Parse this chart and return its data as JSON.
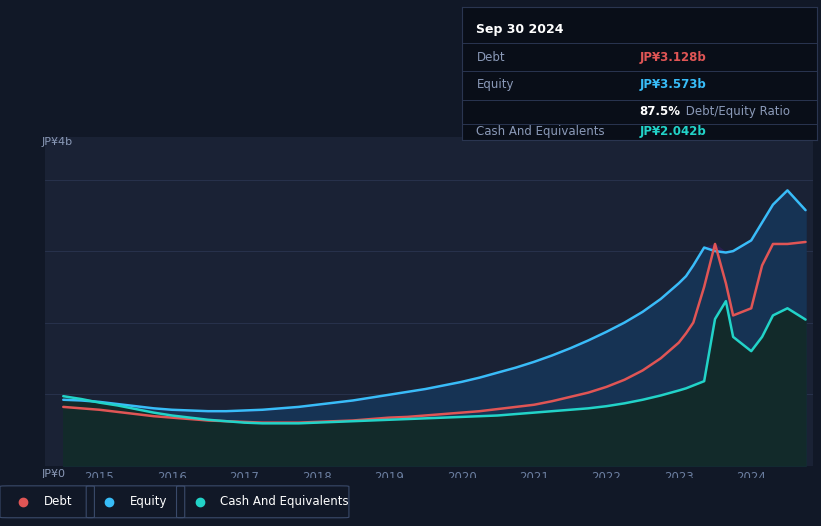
{
  "bg_color": "#111827",
  "chart_bg": "#1a2235",
  "grid_color": "#2a3550",
  "debt_color": "#e05555",
  "equity_color": "#38bdf8",
  "cash_color": "#22d3c8",
  "debt_fill": "#1e3a5f",
  "cash_fill_color": "#163535",
  "debt_over_equity_fill": "#2d1f4e",
  "y_label_top": "JP¥4b",
  "y_label_bot": "JP¥0",
  "tooltip_bg": "#090e18",
  "tooltip_border": "#2a3550",
  "title_text": "Sep 30 2024",
  "debt_label": "Debt",
  "equity_label": "Equity",
  "cash_label": "Cash And Equivalents",
  "debt_val": "JP¥3.128b",
  "equity_val": "JP¥3.573b",
  "ratio_val": "87.5%",
  "ratio_label": " Debt/Equity Ratio",
  "cash_val": "JP¥2.042b",
  "xlim_left": 2014.25,
  "xlim_right": 2024.85,
  "ylim": [
    0,
    4.6
  ],
  "xticks": [
    2015,
    2016,
    2017,
    2018,
    2019,
    2020,
    2021,
    2022,
    2023,
    2024
  ],
  "years": [
    2014.5,
    2014.75,
    2015.0,
    2015.25,
    2015.5,
    2015.75,
    2016.0,
    2016.25,
    2016.5,
    2016.75,
    2017.0,
    2017.25,
    2017.5,
    2017.75,
    2018.0,
    2018.25,
    2018.5,
    2018.75,
    2019.0,
    2019.25,
    2019.5,
    2019.75,
    2020.0,
    2020.25,
    2020.5,
    2020.75,
    2021.0,
    2021.25,
    2021.5,
    2021.75,
    2022.0,
    2022.25,
    2022.5,
    2022.75,
    2023.0,
    2023.1,
    2023.2,
    2023.35,
    2023.5,
    2023.65,
    2023.75,
    2024.0,
    2024.15,
    2024.3,
    2024.5,
    2024.75
  ],
  "equity": [
    0.92,
    0.91,
    0.89,
    0.86,
    0.83,
    0.8,
    0.78,
    0.77,
    0.76,
    0.76,
    0.77,
    0.78,
    0.8,
    0.82,
    0.85,
    0.88,
    0.91,
    0.95,
    0.99,
    1.03,
    1.07,
    1.12,
    1.17,
    1.23,
    1.3,
    1.37,
    1.45,
    1.54,
    1.64,
    1.75,
    1.87,
    2.0,
    2.15,
    2.33,
    2.55,
    2.65,
    2.8,
    3.05,
    3.0,
    2.98,
    3.0,
    3.15,
    3.4,
    3.65,
    3.85,
    3.573
  ],
  "debt": [
    0.82,
    0.8,
    0.78,
    0.75,
    0.72,
    0.69,
    0.67,
    0.65,
    0.63,
    0.62,
    0.61,
    0.6,
    0.6,
    0.6,
    0.61,
    0.62,
    0.63,
    0.65,
    0.67,
    0.68,
    0.7,
    0.72,
    0.74,
    0.76,
    0.79,
    0.82,
    0.85,
    0.9,
    0.96,
    1.02,
    1.1,
    1.2,
    1.33,
    1.5,
    1.72,
    1.85,
    2.0,
    2.5,
    3.1,
    2.55,
    2.1,
    2.2,
    2.8,
    3.1,
    3.1,
    3.128
  ],
  "cash": [
    0.97,
    0.93,
    0.88,
    0.84,
    0.79,
    0.74,
    0.7,
    0.67,
    0.64,
    0.62,
    0.6,
    0.59,
    0.59,
    0.59,
    0.6,
    0.61,
    0.62,
    0.63,
    0.64,
    0.65,
    0.66,
    0.67,
    0.68,
    0.69,
    0.7,
    0.72,
    0.74,
    0.76,
    0.78,
    0.8,
    0.83,
    0.87,
    0.92,
    0.98,
    1.05,
    1.08,
    1.12,
    1.18,
    2.05,
    2.3,
    1.8,
    1.6,
    1.8,
    2.1,
    2.2,
    2.042
  ]
}
